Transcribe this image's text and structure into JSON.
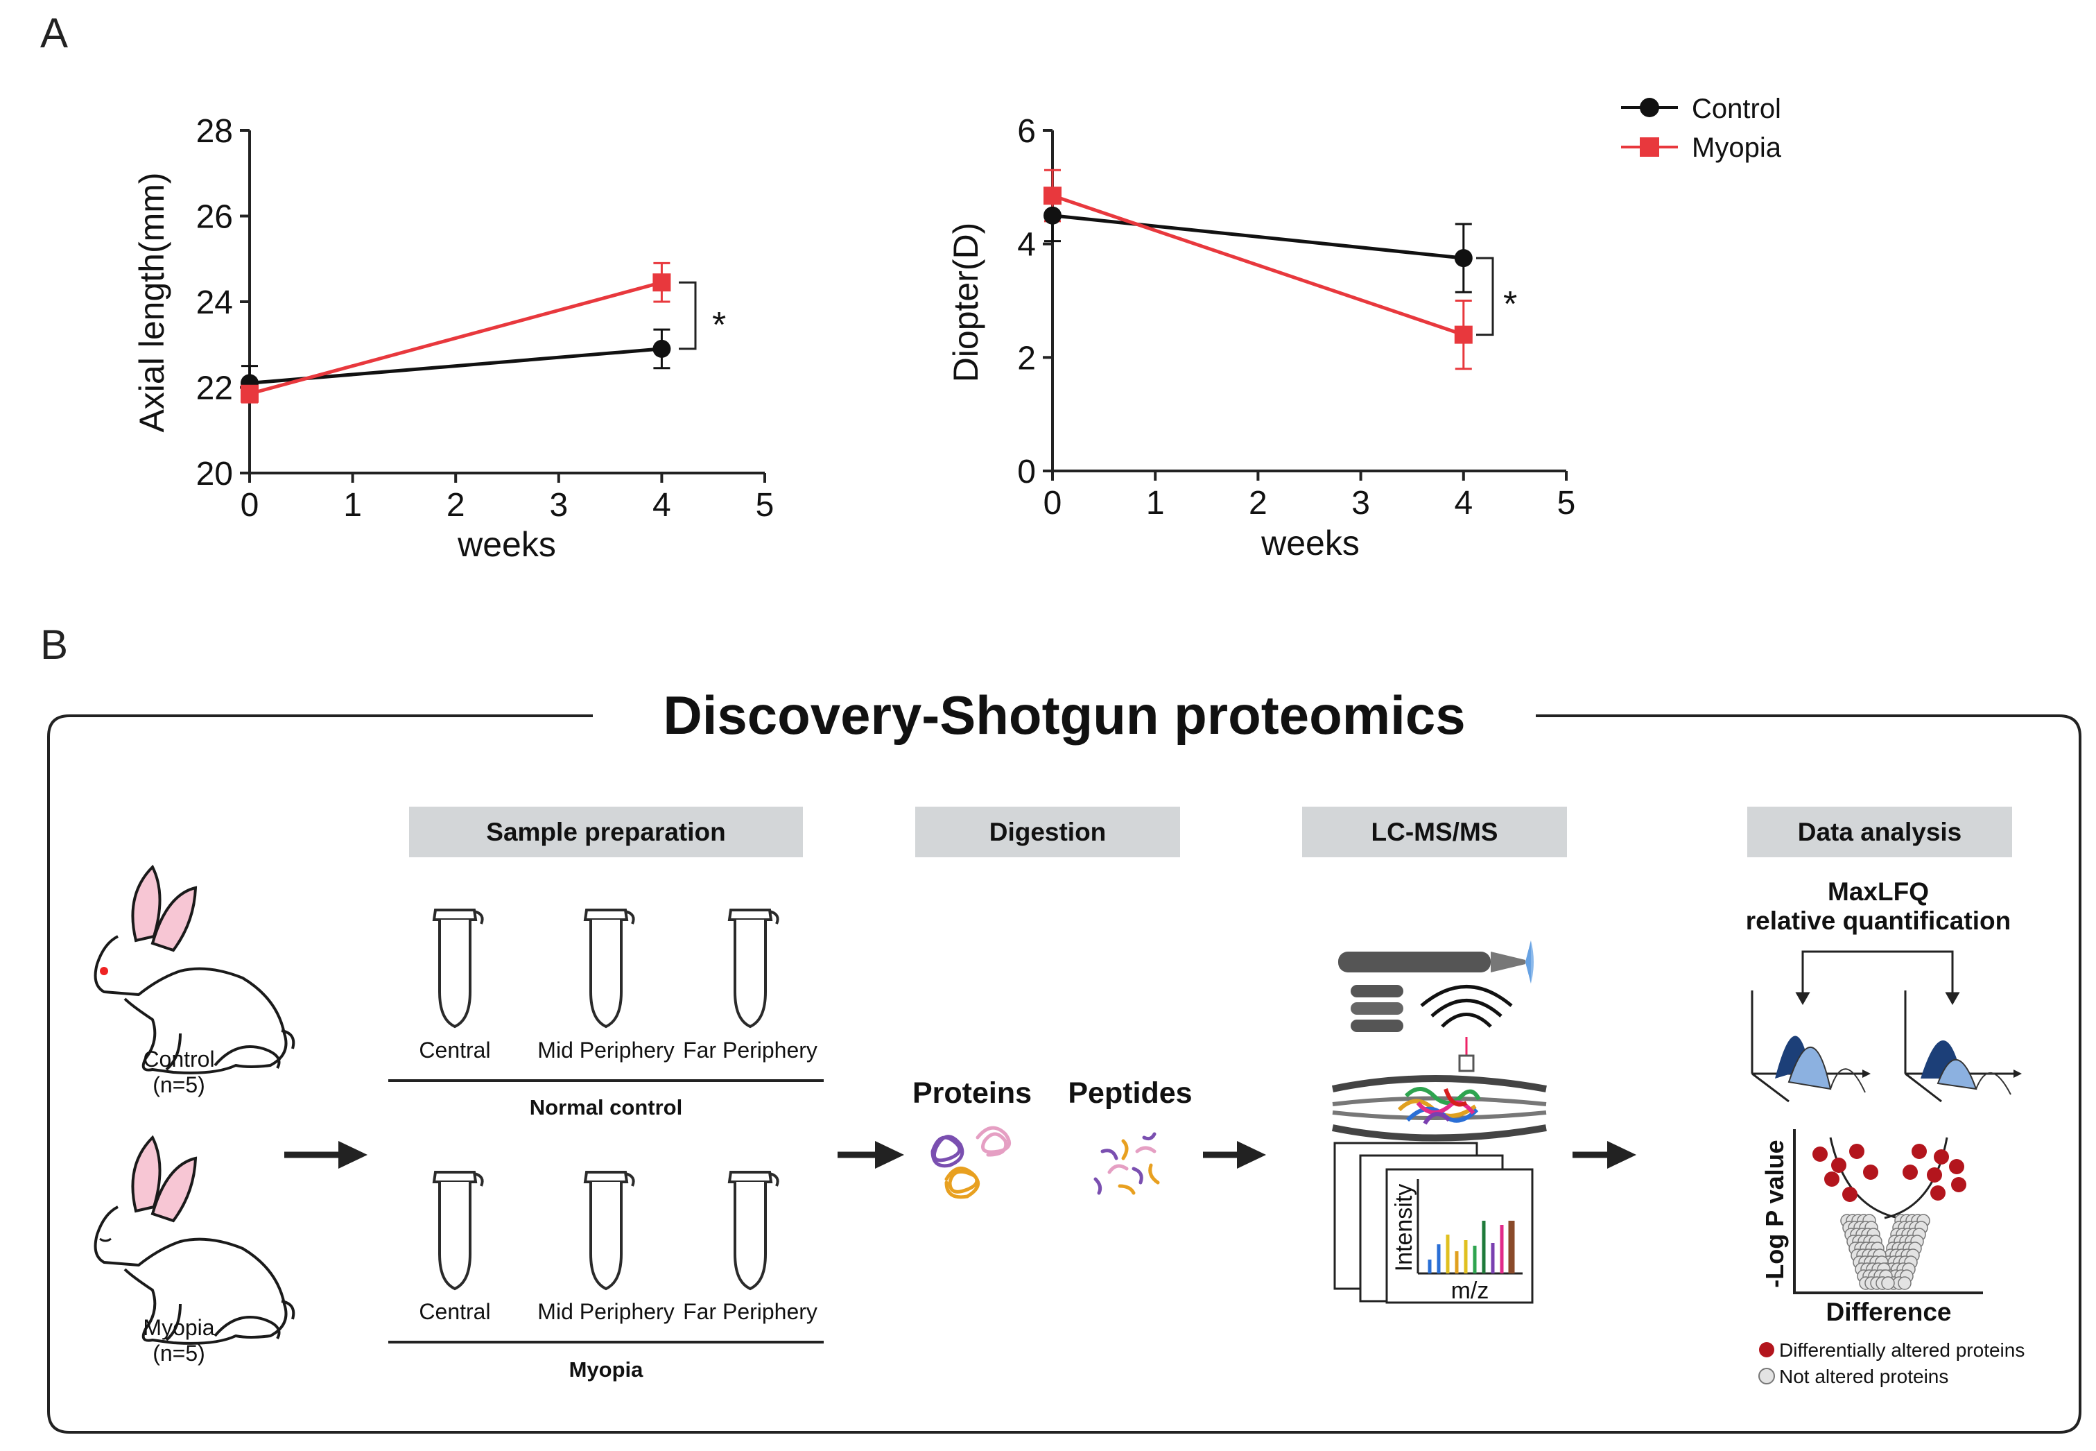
{
  "panel_a": {
    "label": "A",
    "legend": {
      "control": "Control",
      "myopia": "Myopia"
    },
    "colors": {
      "control": "#111111",
      "myopia": "#e8383d"
    }
  },
  "panel_b": {
    "label": "B",
    "title": "Discovery-Shotgun proteomics",
    "steps": {
      "sample_preparation": "Sample preparation",
      "digestion": "Digestion",
      "lcms": "LC-MS/MS",
      "data_analysis": "Data analysis"
    },
    "animals": {
      "control_name": "Control",
      "control_n": "(n=5)",
      "myopia_name": "Myopia",
      "myopia_n": "(n=5)"
    },
    "tubes": {
      "central": "Central",
      "mid_periphery": "Mid Periphery",
      "far_periphery": "Far Periphery"
    },
    "groups": {
      "normal_control": "Normal control",
      "myopia": "Myopia"
    },
    "digestion": {
      "proteins": "Proteins",
      "peptides": "Peptides"
    },
    "spectrum": {
      "ylabel": "Intensity",
      "xlabel": "m/z"
    },
    "analysis": {
      "maxlfq_line1": "MaxLFQ",
      "maxlfq_line2": "relative quantification",
      "volcano_ylabel": "-Log P value",
      "volcano_xlabel": "Difference",
      "legend_altered": "Differentially altered proteins",
      "legend_not_altered": "Not altered proteins"
    },
    "colors": {
      "header_bg": "#d3d6d8",
      "altered": "#b3151d",
      "not_altered": "#e3e3e3",
      "tube_control": "#bcd0ea",
      "tube_myopia": "#f3b7cc"
    }
  },
  "chart_data": [
    {
      "type": "line",
      "title": "",
      "xlabel": "weeks",
      "ylabel": "Axial length(mm)",
      "xlim": [
        0,
        5
      ],
      "ylim": [
        20,
        28
      ],
      "xticks": [
        0,
        1,
        2,
        3,
        4,
        5
      ],
      "yticks": [
        20,
        22,
        24,
        26,
        28
      ],
      "series": [
        {
          "name": "Control",
          "x": [
            0,
            4
          ],
          "y": [
            22.1,
            22.9
          ],
          "err": [
            0.4,
            0.45
          ],
          "marker": "circle"
        },
        {
          "name": "Myopia",
          "x": [
            0,
            4
          ],
          "y": [
            21.85,
            24.45
          ],
          "err": [
            0.2,
            0.45
          ],
          "marker": "square"
        }
      ],
      "significance": "*"
    },
    {
      "type": "line",
      "title": "",
      "xlabel": "weeks",
      "ylabel": "Diopter(D)",
      "xlim": [
        0,
        5
      ],
      "ylim": [
        0,
        6
      ],
      "xticks": [
        0,
        1,
        2,
        3,
        4,
        5
      ],
      "yticks": [
        0,
        2,
        4,
        6
      ],
      "series": [
        {
          "name": "Control",
          "x": [
            0,
            4
          ],
          "y": [
            4.5,
            3.75
          ],
          "err": [
            0.45,
            0.6
          ],
          "marker": "circle"
        },
        {
          "name": "Myopia",
          "x": [
            0,
            4
          ],
          "y": [
            4.85,
            2.4
          ],
          "err": [
            0.45,
            0.6
          ],
          "marker": "square"
        }
      ],
      "significance": "*"
    }
  ]
}
